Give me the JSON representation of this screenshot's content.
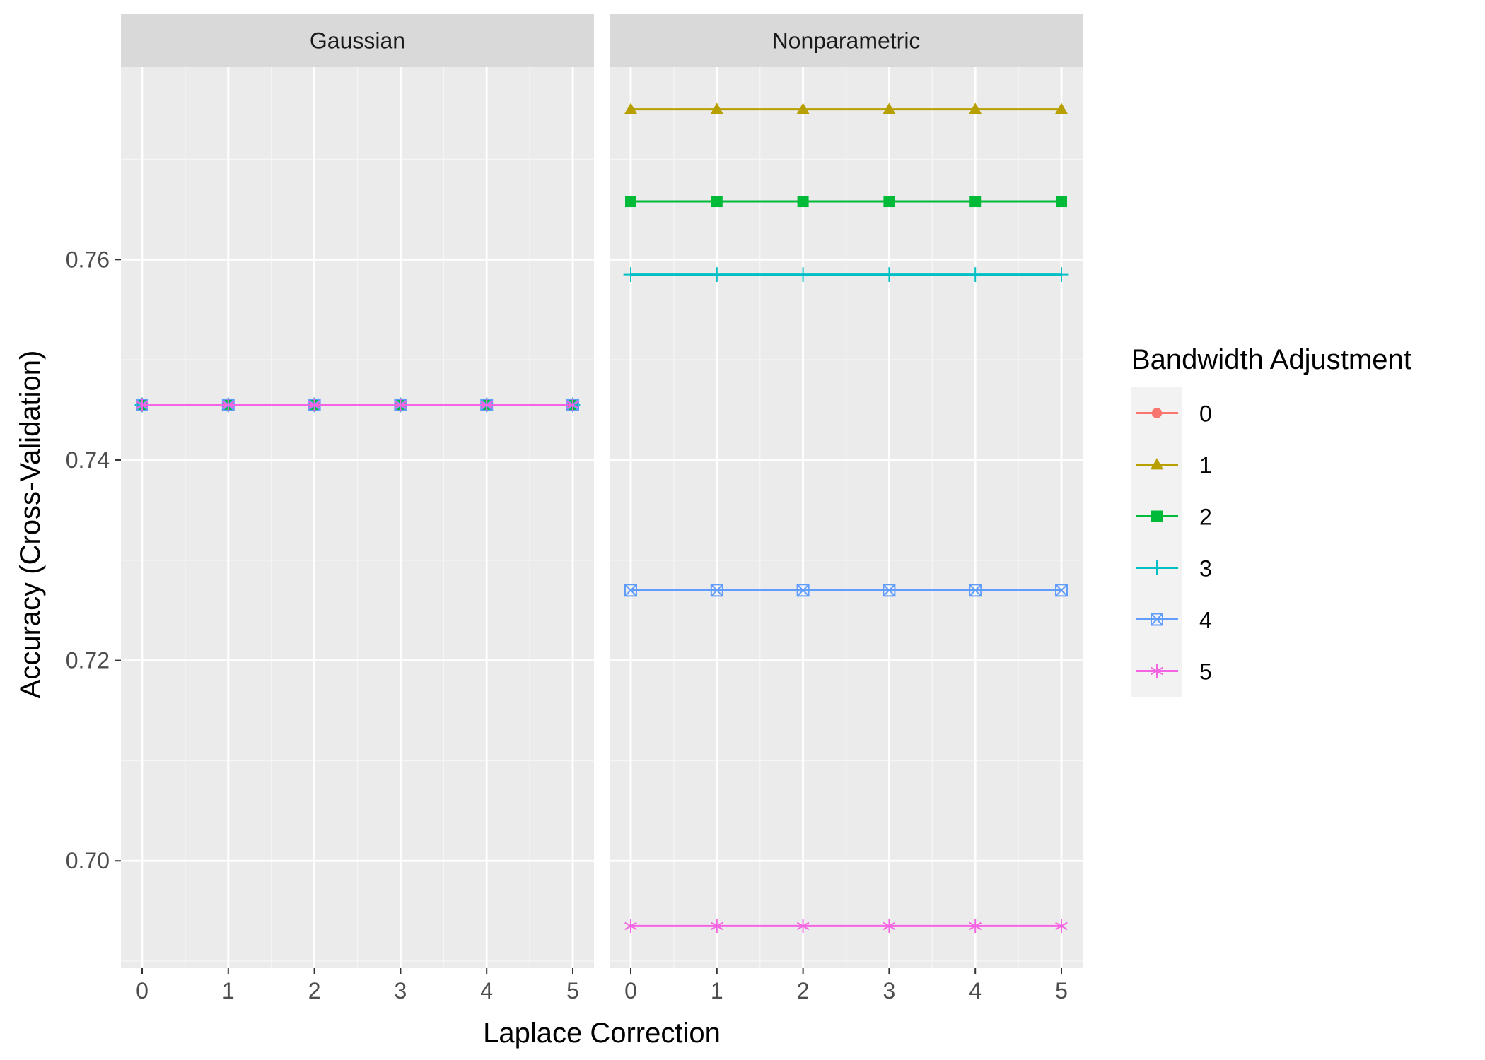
{
  "chart_data": {
    "type": "line",
    "xlabel": "Laplace Correction",
    "ylabel": "Accuracy (Cross-Validation)",
    "x": [
      0,
      1,
      2,
      3,
      4,
      5
    ],
    "xticks": [
      "0",
      "1",
      "2",
      "3",
      "4",
      "5"
    ],
    "yticks": [
      0.7,
      0.72,
      0.74,
      0.76
    ],
    "ytick_labels": [
      "0.70",
      "0.72",
      "0.74",
      "0.76"
    ],
    "ylim": [
      0.6893,
      0.7792
    ],
    "grid": true,
    "legend": {
      "title": "Bandwidth Adjustment",
      "position": "right",
      "entries": [
        {
          "label": "0",
          "color": "#F8766D",
          "shape": "circle"
        },
        {
          "label": "1",
          "color": "#B79F00",
          "shape": "triangle"
        },
        {
          "label": "2",
          "color": "#00BA38",
          "shape": "square"
        },
        {
          "label": "3",
          "color": "#00BFC4",
          "shape": "plus"
        },
        {
          "label": "4",
          "color": "#619CFF",
          "shape": "square-cross"
        },
        {
          "label": "5",
          "color": "#F564E3",
          "shape": "asterisk"
        }
      ]
    },
    "panels": [
      {
        "title": "Gaussian",
        "series": [
          {
            "name": "0",
            "values": [
              0.7455,
              0.7455,
              0.7455,
              0.7455,
              0.7455,
              0.7455
            ]
          },
          {
            "name": "1",
            "values": [
              0.7455,
              0.7455,
              0.7455,
              0.7455,
              0.7455,
              0.7455
            ]
          },
          {
            "name": "2",
            "values": [
              0.7455,
              0.7455,
              0.7455,
              0.7455,
              0.7455,
              0.7455
            ]
          },
          {
            "name": "3",
            "values": [
              0.7455,
              0.7455,
              0.7455,
              0.7455,
              0.7455,
              0.7455
            ]
          },
          {
            "name": "4",
            "values": [
              0.7455,
              0.7455,
              0.7455,
              0.7455,
              0.7455,
              0.7455
            ]
          },
          {
            "name": "5",
            "values": [
              0.7455,
              0.7455,
              0.7455,
              0.7455,
              0.7455,
              0.7455
            ]
          }
        ]
      },
      {
        "title": "Nonparametric",
        "series": [
          {
            "name": "1",
            "values": [
              0.775,
              0.775,
              0.775,
              0.775,
              0.775,
              0.775
            ]
          },
          {
            "name": "2",
            "values": [
              0.7658,
              0.7658,
              0.7658,
              0.7658,
              0.7658,
              0.7658
            ]
          },
          {
            "name": "3",
            "values": [
              0.7585,
              0.7585,
              0.7585,
              0.7585,
              0.7585,
              0.7585
            ]
          },
          {
            "name": "4",
            "values": [
              0.727,
              0.727,
              0.727,
              0.727,
              0.727,
              0.727
            ]
          },
          {
            "name": "5",
            "values": [
              0.6935,
              0.6935,
              0.6935,
              0.6935,
              0.6935,
              0.6935
            ]
          }
        ]
      }
    ]
  }
}
